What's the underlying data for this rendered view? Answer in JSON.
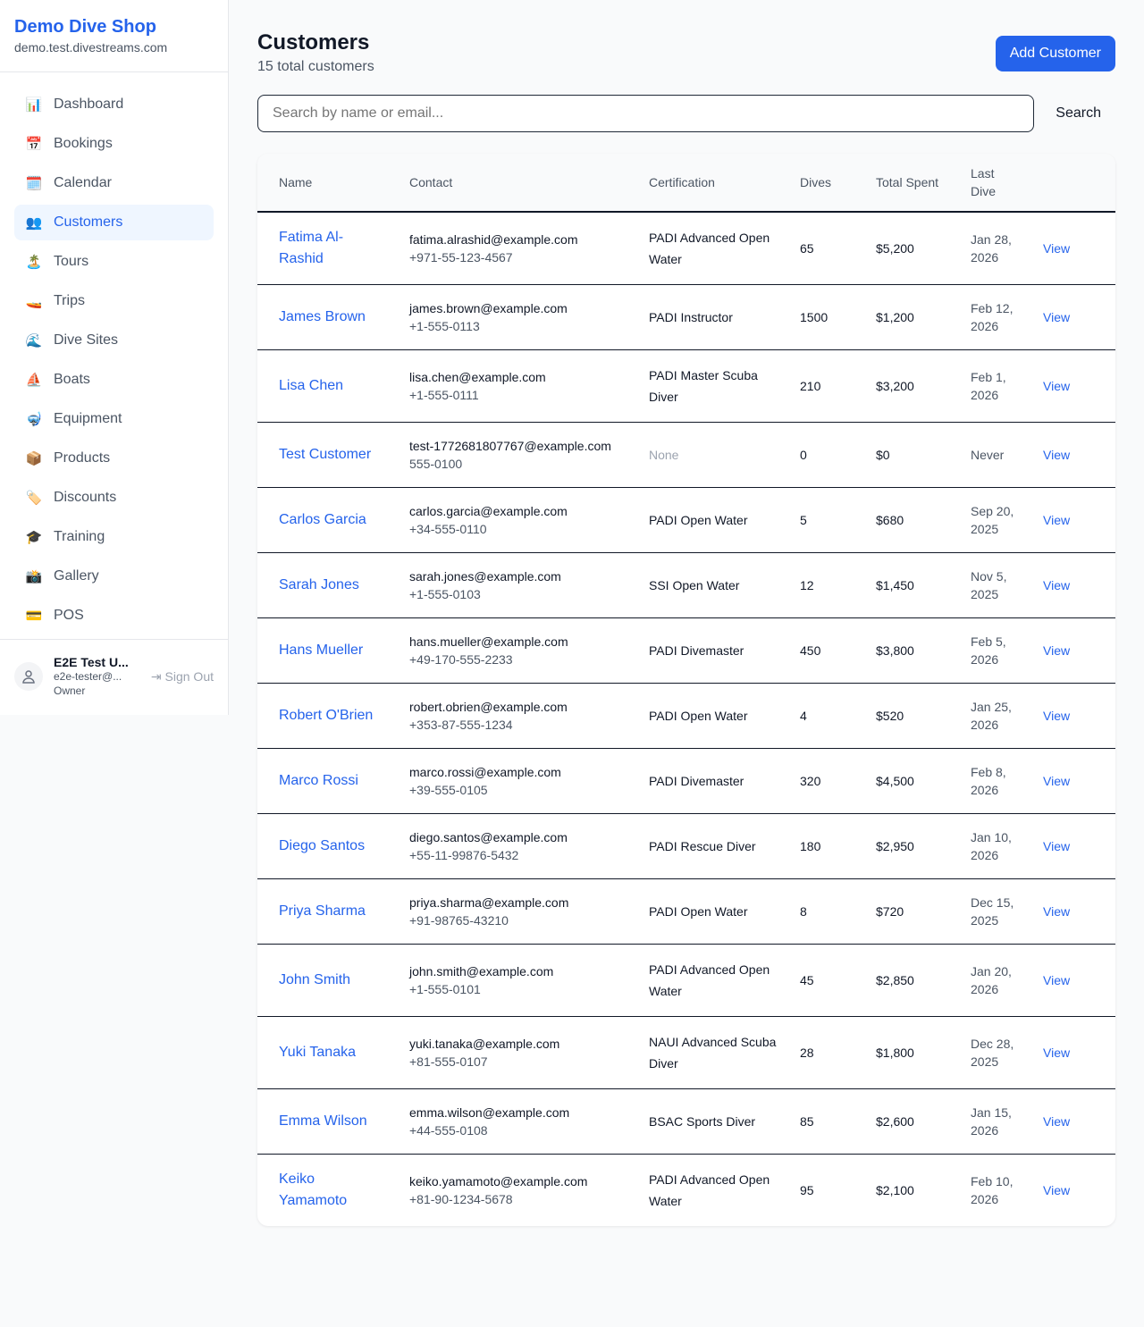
{
  "sidebar": {
    "brand": "Demo Dive Shop",
    "domain": "demo.test.divestreams.com",
    "items": [
      {
        "label": "Dashboard",
        "icon": "📊"
      },
      {
        "label": "Bookings",
        "icon": "📅"
      },
      {
        "label": "Calendar",
        "icon": "🗓️"
      },
      {
        "label": "Customers",
        "icon": "👥",
        "active": true
      },
      {
        "label": "Tours",
        "icon": "🏝️"
      },
      {
        "label": "Trips",
        "icon": "🚤"
      },
      {
        "label": "Dive Sites",
        "icon": "🌊"
      },
      {
        "label": "Boats",
        "icon": "⛵"
      },
      {
        "label": "Equipment",
        "icon": "🤿"
      },
      {
        "label": "Products",
        "icon": "📦"
      },
      {
        "label": "Discounts",
        "icon": "🏷️"
      },
      {
        "label": "Training",
        "icon": "🎓"
      },
      {
        "label": "Gallery",
        "icon": "📸"
      },
      {
        "label": "POS",
        "icon": "💳"
      }
    ],
    "user": {
      "name": "E2E Test U...",
      "email": "e2e-tester@...",
      "role": "Owner",
      "sign_out": "Sign Out"
    }
  },
  "header": {
    "title": "Customers",
    "subtitle": "15 total customers",
    "add_button": "Add Customer"
  },
  "search": {
    "placeholder": "Search by name or email...",
    "value": "",
    "button": "Search"
  },
  "table": {
    "columns": [
      "Name",
      "Contact",
      "Certification",
      "Dives",
      "Total Spent",
      "Last Dive",
      ""
    ],
    "view_label": "View",
    "rows": [
      {
        "name": "Fatima Al-Rashid",
        "email": "fatima.alrashid@example.com",
        "phone": "+971-55-123-4567",
        "cert": "PADI Advanced Open Water",
        "dives": "65",
        "spent": "$5,200",
        "last": "Jan 28, 2026"
      },
      {
        "name": "James Brown",
        "email": "james.brown@example.com",
        "phone": "+1-555-0113",
        "cert": "PADI Instructor",
        "dives": "1500",
        "spent": "$1,200",
        "last": "Feb 12, 2026"
      },
      {
        "name": "Lisa Chen",
        "email": "lisa.chen@example.com",
        "phone": "+1-555-0111",
        "cert": "PADI Master Scuba Diver",
        "dives": "210",
        "spent": "$3,200",
        "last": "Feb 1, 2026"
      },
      {
        "name": "Test Customer",
        "email": "test-1772681807767@example.com",
        "phone": "555-0100",
        "cert": "None",
        "dives": "0",
        "spent": "$0",
        "last": "Never"
      },
      {
        "name": "Carlos Garcia",
        "email": "carlos.garcia@example.com",
        "phone": "+34-555-0110",
        "cert": "PADI Open Water",
        "dives": "5",
        "spent": "$680",
        "last": "Sep 20, 2025"
      },
      {
        "name": "Sarah Jones",
        "email": "sarah.jones@example.com",
        "phone": "+1-555-0103",
        "cert": "SSI Open Water",
        "dives": "12",
        "spent": "$1,450",
        "last": "Nov 5, 2025"
      },
      {
        "name": "Hans Mueller",
        "email": "hans.mueller@example.com",
        "phone": "+49-170-555-2233",
        "cert": "PADI Divemaster",
        "dives": "450",
        "spent": "$3,800",
        "last": "Feb 5, 2026"
      },
      {
        "name": "Robert O'Brien",
        "email": "robert.obrien@example.com",
        "phone": "+353-87-555-1234",
        "cert": "PADI Open Water",
        "dives": "4",
        "spent": "$520",
        "last": "Jan 25, 2026"
      },
      {
        "name": "Marco Rossi",
        "email": "marco.rossi@example.com",
        "phone": "+39-555-0105",
        "cert": "PADI Divemaster",
        "dives": "320",
        "spent": "$4,500",
        "last": "Feb 8, 2026"
      },
      {
        "name": "Diego Santos",
        "email": "diego.santos@example.com",
        "phone": "+55-11-99876-5432",
        "cert": "PADI Rescue Diver",
        "dives": "180",
        "spent": "$2,950",
        "last": "Jan 10, 2026"
      },
      {
        "name": "Priya Sharma",
        "email": "priya.sharma@example.com",
        "phone": "+91-98765-43210",
        "cert": "PADI Open Water",
        "dives": "8",
        "spent": "$720",
        "last": "Dec 15, 2025"
      },
      {
        "name": "John Smith",
        "email": "john.smith@example.com",
        "phone": "+1-555-0101",
        "cert": "PADI Advanced Open Water",
        "dives": "45",
        "spent": "$2,850",
        "last": "Jan 20, 2026"
      },
      {
        "name": "Yuki Tanaka",
        "email": "yuki.tanaka@example.com",
        "phone": "+81-555-0107",
        "cert": "NAUI Advanced Scuba Diver",
        "dives": "28",
        "spent": "$1,800",
        "last": "Dec 28, 2025"
      },
      {
        "name": "Emma Wilson",
        "email": "emma.wilson@example.com",
        "phone": "+44-555-0108",
        "cert": "BSAC Sports Diver",
        "dives": "85",
        "spent": "$2,600",
        "last": "Jan 15, 2026"
      },
      {
        "name": "Keiko Yamamoto",
        "email": "keiko.yamamoto@example.com",
        "phone": "+81-90-1234-5678",
        "cert": "PADI Advanced Open Water",
        "dives": "95",
        "spent": "$2,100",
        "last": "Feb 10, 2026"
      }
    ]
  }
}
